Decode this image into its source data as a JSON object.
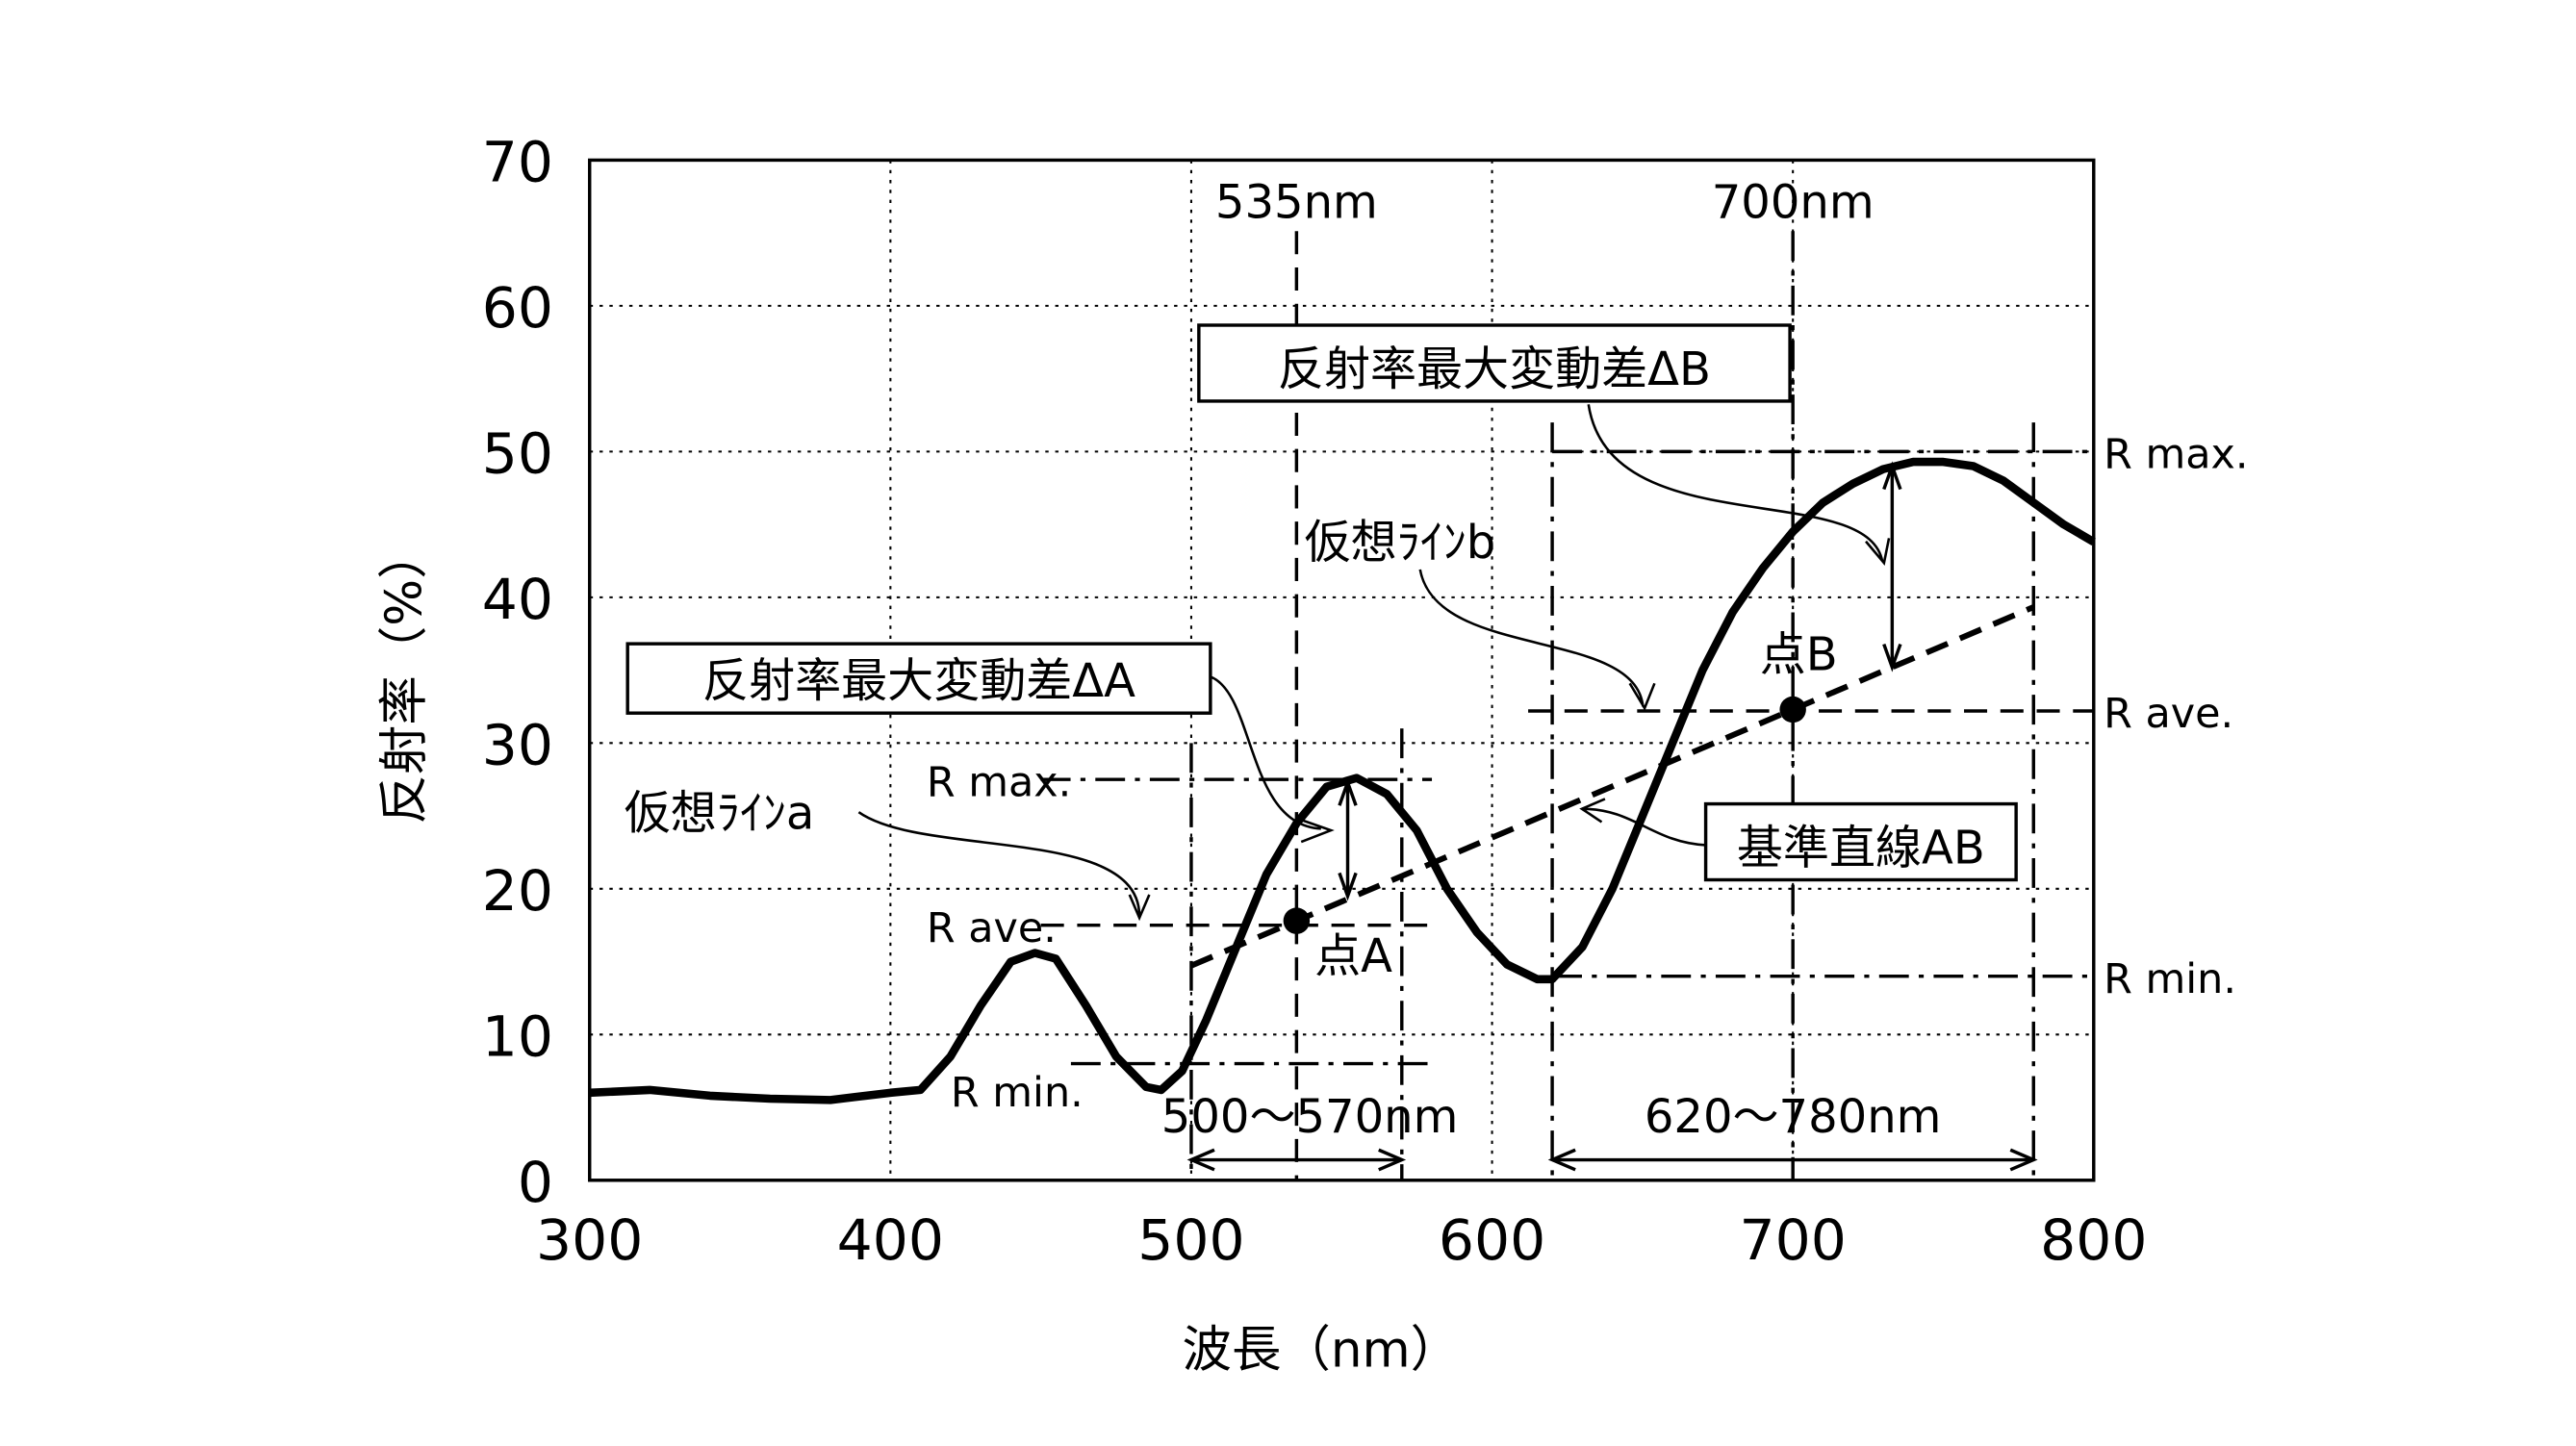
{
  "chart_data": {
    "type": "line",
    "xlabel": "波長（nm）",
    "ylabel": "反射率（%）",
    "xlim": [
      300,
      800
    ],
    "ylim": [
      0,
      70
    ],
    "xticks": [
      300,
      400,
      500,
      600,
      700,
      800
    ],
    "yticks": [
      0,
      10,
      20,
      30,
      40,
      50,
      60,
      70
    ],
    "grid": true,
    "series": [
      {
        "x": [
          300,
          320,
          340,
          360,
          380,
          400,
          410,
          420,
          430,
          440,
          448,
          455,
          465,
          475,
          485,
          490,
          497,
          505,
          515,
          525,
          535,
          545,
          555,
          565,
          575,
          585,
          595,
          605,
          615,
          620,
          630,
          640,
          650,
          660,
          670,
          680,
          690,
          700,
          710,
          720,
          730,
          740,
          750,
          760,
          770,
          780,
          790,
          800
        ],
        "y": [
          6,
          6.2,
          5.8,
          5.6,
          5.5,
          6,
          6.2,
          8.5,
          12,
          15,
          15.6,
          15.2,
          12,
          8.5,
          6.4,
          6.2,
          7.5,
          11,
          16,
          21,
          24.5,
          27,
          27.6,
          26.5,
          24,
          20,
          17,
          14.8,
          13.8,
          13.8,
          16,
          20,
          25,
          30,
          35,
          39,
          42,
          44.5,
          46.5,
          47.8,
          48.8,
          49.3,
          49.3,
          49,
          48,
          46.5,
          45,
          43.8
        ]
      }
    ],
    "annotations": {
      "wl_a": "535nm",
      "wl_b": "700nm",
      "range_a": "500～570nm",
      "range_b": "620～780nm",
      "delta_a": "反射率最大変動差ΔA",
      "delta_b": "反射率最大変動差ΔB",
      "virtual_a": "仮想ﾗｲﾝa",
      "virtual_b": "仮想ﾗｲﾝb",
      "reference_line": "基準直線AB",
      "point_a": "点A",
      "point_b": "点B",
      "rmax": "R max.",
      "rave": "R ave.",
      "rmin": "R min.",
      "point_a_value": [
        535,
        17.8
      ],
      "point_b_value": [
        700,
        32.3
      ],
      "range_a_nm": [
        500,
        570
      ],
      "range_b_nm": [
        620,
        780
      ],
      "range_a_levels": {
        "max": 27.5,
        "ave": 17.5,
        "min": 8
      },
      "range_b_levels": {
        "max": 50,
        "ave": 32.2,
        "min": 14
      }
    }
  }
}
